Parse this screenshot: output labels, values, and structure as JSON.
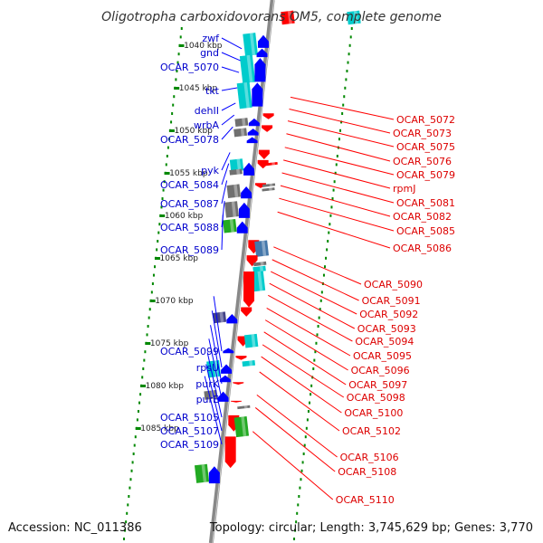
{
  "title": "Oligotropha carboxidovorans OM5, complete genome",
  "accession": "Accession: NC_011386",
  "topology": "Topology: circular; Length: 3,745,629 bp; Genes: 3,770",
  "colors": {
    "forward": "#0000ff",
    "reverse": "#ff0000",
    "backbone": "#888888",
    "tick": "#008800",
    "cyan": "#00cccc",
    "gray": "#707070",
    "green": "#22aa22",
    "navy": "#444488",
    "steelblue": "#4477aa"
  },
  "scale_labels": [
    {
      "kbp": 1040,
      "text": "1040 kbp"
    },
    {
      "kbp": 1045,
      "text": "1045 kbp"
    },
    {
      "kbp": 1050,
      "text": "1050 kbp"
    },
    {
      "kbp": 1055,
      "text": "1055 kbp"
    },
    {
      "kbp": 1060,
      "text": "1060 kbp"
    },
    {
      "kbp": 1065,
      "text": "1065 kbp"
    },
    {
      "kbp": 1070,
      "text": "1070 kbp"
    },
    {
      "kbp": 1075,
      "text": "1075 kbp"
    },
    {
      "kbp": 1080,
      "text": "1080 kbp"
    },
    {
      "kbp": 1085,
      "text": "1085 kbp"
    }
  ],
  "left_genes": [
    {
      "name": "zwf",
      "kbp": 1040.4
    },
    {
      "name": "gnd",
      "kbp": 1041.8
    },
    {
      "name": "OCAR_5070",
      "kbp": 1043.2
    },
    {
      "name": "tkt",
      "kbp": 1045.0
    },
    {
      "name": "dehII",
      "kbp": 1046.8
    },
    {
      "name": "wrbA",
      "kbp": 1048.2
    },
    {
      "name": "OCAR_5078",
      "kbp": 1049.6
    },
    {
      "name": "pyk",
      "kbp": 1052.6
    },
    {
      "name": "OCAR_5084",
      "kbp": 1053.9
    },
    {
      "name": "OCAR_5087",
      "kbp": 1055.9
    },
    {
      "name": "OCAR_5088",
      "kbp": 1058.3
    },
    {
      "name": "OCAR_5089",
      "kbp": 1059.9
    },
    {
      "name": "OCAR_5099",
      "kbp": 1069.5
    },
    {
      "name": "rpsU",
      "kbp": 1071.2
    },
    {
      "name": "purK",
      "kbp": 1072.9
    },
    {
      "name": "purE",
      "kbp": 1074.5
    },
    {
      "name": "OCAR_5105",
      "kbp": 1076.1
    },
    {
      "name": "OCAR_5107",
      "kbp": 1077.5
    },
    {
      "name": "OCAR_5109",
      "kbp": 1078.9
    }
  ],
  "right_genes": [
    {
      "name": "OCAR_5072",
      "kbp": 1046.1
    },
    {
      "name": "OCAR_5073",
      "kbp": 1047.5
    },
    {
      "name": "OCAR_5075",
      "kbp": 1048.9
    },
    {
      "name": "OCAR_5076",
      "kbp": 1050.4
    },
    {
      "name": "OCAR_5079",
      "kbp": 1052.0
    },
    {
      "name": "rpmJ",
      "kbp": 1053.5
    },
    {
      "name": "OCAR_5081",
      "kbp": 1055.0
    },
    {
      "name": "OCAR_5082",
      "kbp": 1056.5
    },
    {
      "name": "OCAR_5085",
      "kbp": 1058.0
    },
    {
      "name": "OCAR_5086",
      "kbp": 1059.6
    },
    {
      "name": "OCAR_5090",
      "kbp": 1063.7
    },
    {
      "name": "OCAR_5091",
      "kbp": 1065.2
    },
    {
      "name": "OCAR_5092",
      "kbp": 1066.6
    },
    {
      "name": "OCAR_5093",
      "kbp": 1068.0
    },
    {
      "name": "OCAR_5094",
      "kbp": 1069.4
    },
    {
      "name": "OCAR_5095",
      "kbp": 1070.9
    },
    {
      "name": "OCAR_5096",
      "kbp": 1072.3
    },
    {
      "name": "OCAR_5097",
      "kbp": 1073.7
    },
    {
      "name": "OCAR_5098",
      "kbp": 1075.2
    },
    {
      "name": "OCAR_5100",
      "kbp": 1076.6
    },
    {
      "name": "OCAR_5102",
      "kbp": 1078.4
    },
    {
      "name": "OCAR_5106",
      "kbp": 1081.1
    },
    {
      "name": "OCAR_5108",
      "kbp": 1082.6
    },
    {
      "name": "OCAR_5110",
      "kbp": 1085.4
    }
  ],
  "forward_features": [
    {
      "start": 1038.6,
      "end": 1041.2,
      "color": "cyan",
      "outer": true
    },
    {
      "start": 1041.2,
      "end": 1044.4,
      "color": "cyan",
      "outer": true
    },
    {
      "start": 1044.4,
      "end": 1047.4,
      "color": "cyan",
      "outer": true
    },
    {
      "start": 1038.8,
      "end": 1040.3,
      "color": "forward"
    },
    {
      "start": 1040.4,
      "end": 1041.4,
      "color": "forward"
    },
    {
      "start": 1041.5,
      "end": 1044.3,
      "color": "forward"
    },
    {
      "start": 1044.4,
      "end": 1047.2,
      "color": "forward"
    },
    {
      "start": 1048.6,
      "end": 1049.5,
      "color": "gray",
      "outer": true
    },
    {
      "start": 1049.8,
      "end": 1050.7,
      "color": "gray",
      "outer": true
    },
    {
      "start": 1048.6,
      "end": 1049.5,
      "color": "forward"
    },
    {
      "start": 1049.8,
      "end": 1050.6,
      "color": "forward"
    },
    {
      "start": 1050.8,
      "end": 1051.5,
      "color": "forward"
    },
    {
      "start": 1053.4,
      "end": 1054.8,
      "color": "cyan",
      "outer": true
    },
    {
      "start": 1054.6,
      "end": 1055.2,
      "color": "gray",
      "outer": true
    },
    {
      "start": 1053.8,
      "end": 1055.3,
      "color": "forward"
    },
    {
      "start": 1056.4,
      "end": 1057.9,
      "color": "gray",
      "outer": true
    },
    {
      "start": 1056.6,
      "end": 1058.0,
      "color": "forward"
    },
    {
      "start": 1058.4,
      "end": 1060.2,
      "color": "gray",
      "outer": true
    },
    {
      "start": 1058.5,
      "end": 1060.3,
      "color": "forward"
    },
    {
      "start": 1060.5,
      "end": 1062.0,
      "color": "green",
      "outer": true
    },
    {
      "start": 1060.7,
      "end": 1062.1,
      "color": "forward"
    },
    {
      "start": 1071.4,
      "end": 1072.6,
      "color": "navy",
      "outer": true
    },
    {
      "start": 1071.6,
      "end": 1072.7,
      "color": "forward"
    },
    {
      "start": 1075.6,
      "end": 1076.2,
      "color": "forward"
    },
    {
      "start": 1077.1,
      "end": 1079.0,
      "color": "cyan",
      "outer": true
    },
    {
      "start": 1077.5,
      "end": 1078.6,
      "color": "forward"
    },
    {
      "start": 1078.8,
      "end": 1079.6,
      "color": "forward"
    },
    {
      "start": 1080.6,
      "end": 1081.6,
      "color": "gray",
      "outer": true
    },
    {
      "start": 1080.7,
      "end": 1081.9,
      "color": "forward"
    },
    {
      "start": 1089.3,
      "end": 1091.4,
      "color": "green",
      "outer": true
    },
    {
      "start": 1089.5,
      "end": 1091.5,
      "color": "forward"
    }
  ],
  "reverse_features": [
    {
      "start": 1036.0,
      "end": 1037.5,
      "color": "reverse",
      "outer": true
    },
    {
      "start": 1036.0,
      "end": 1037.5,
      "color": "cyan",
      "far": true
    },
    {
      "start": 1048.0,
      "end": 1048.7,
      "color": "reverse"
    },
    {
      "start": 1049.4,
      "end": 1050.2,
      "color": "reverse"
    },
    {
      "start": 1052.3,
      "end": 1053.4,
      "color": "reverse"
    },
    {
      "start": 1053.5,
      "end": 1054.5,
      "color": "reverse"
    },
    {
      "start": 1053.8,
      "end": 1054.1,
      "color": "reverse",
      "outer": true
    },
    {
      "start": 1056.2,
      "end": 1056.8,
      "color": "reverse"
    },
    {
      "start": 1056.3,
      "end": 1056.6,
      "color": "gray",
      "outer": true
    },
    {
      "start": 1056.8,
      "end": 1057.1,
      "color": "gray",
      "outer": true
    },
    {
      "start": 1062.9,
      "end": 1064.5,
      "color": "reverse"
    },
    {
      "start": 1063.0,
      "end": 1064.8,
      "color": "steelblue",
      "outer": true
    },
    {
      "start": 1064.7,
      "end": 1066.0,
      "color": "reverse"
    },
    {
      "start": 1065.5,
      "end": 1065.9,
      "color": "gray",
      "outer": true
    },
    {
      "start": 1066.0,
      "end": 1066.6,
      "color": "cyan",
      "outer": true
    },
    {
      "start": 1066.6,
      "end": 1068.9,
      "color": "cyan",
      "outer": true
    },
    {
      "start": 1066.6,
      "end": 1070.8,
      "color": "reverse"
    },
    {
      "start": 1070.8,
      "end": 1071.9,
      "color": "reverse"
    },
    {
      "start": 1074.2,
      "end": 1075.4,
      "color": "reverse"
    },
    {
      "start": 1074.0,
      "end": 1075.5,
      "color": "cyan",
      "outer": true
    },
    {
      "start": 1076.5,
      "end": 1077.0,
      "color": "reverse"
    },
    {
      "start": 1077.1,
      "end": 1077.7,
      "color": "cyan",
      "outer": true
    },
    {
      "start": 1079.6,
      "end": 1079.9,
      "color": "reverse"
    },
    {
      "start": 1081.8,
      "end": 1082.0,
      "color": "reverse"
    },
    {
      "start": 1082.4,
      "end": 1082.7,
      "color": "gray",
      "outer": true
    },
    {
      "start": 1083.5,
      "end": 1085.4,
      "color": "reverse"
    },
    {
      "start": 1083.7,
      "end": 1086.0,
      "color": "green",
      "outer": true
    },
    {
      "start": 1086.0,
      "end": 1089.7,
      "color": "reverse"
    }
  ]
}
